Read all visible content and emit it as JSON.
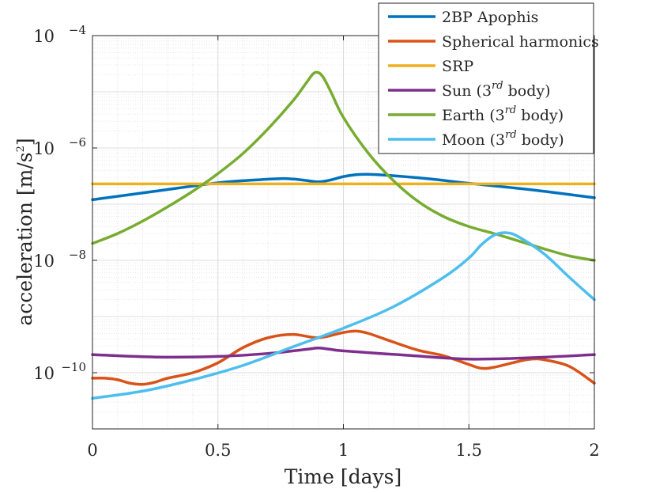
{
  "chart_data": {
    "type": "line",
    "xlabel": "Time [days]",
    "ylabel": "acceleration [m/s",
    "ylabel_sup": "2",
    "ylabel_tail": "]",
    "xlim": [
      0,
      2
    ],
    "ylim": [
      1e-11,
      0.0001
    ],
    "yscale": "log",
    "grid": true,
    "legend_position": "top-right",
    "x_ticks": [
      {
        "value": 0,
        "label": "0"
      },
      {
        "value": 0.5,
        "label": "0.5"
      },
      {
        "value": 1,
        "label": "1"
      },
      {
        "value": 1.5,
        "label": "1.5"
      },
      {
        "value": 2,
        "label": "2"
      }
    ],
    "y_ticks": [
      {
        "value": 1e-10,
        "base": "10",
        "exp": "−10"
      },
      {
        "value": 1e-08,
        "base": "10",
        "exp": "−8"
      },
      {
        "value": 1e-06,
        "base": "10",
        "exp": "−6"
      },
      {
        "value": 0.0001,
        "base": "10",
        "exp": "−4"
      }
    ],
    "series": [
      {
        "name": "2BP Apophis",
        "legend_main": "2BP Apophis",
        "legend_sup": "",
        "legend_tail": "",
        "color": "#0072BD",
        "x": [
          0,
          0.25,
          0.5,
          0.65,
          0.75,
          0.8,
          0.85,
          0.9,
          0.95,
          1.0,
          1.05,
          1.1,
          1.2,
          1.35,
          1.5,
          1.75,
          2.0
        ],
        "y": [
          1.2e-07,
          1.7e-07,
          2.4e-07,
          2.7e-07,
          2.85e-07,
          2.8e-07,
          2.65e-07,
          2.5e-07,
          2.7e-07,
          3.1e-07,
          3.35e-07,
          3.4e-07,
          3.2e-07,
          2.8e-07,
          2.35e-07,
          1.8e-07,
          1.3e-07
        ]
      },
      {
        "name": "Spherical harmonics",
        "legend_main": "Spherical harmonics",
        "legend_sup": "",
        "legend_tail": "",
        "color": "#D95319",
        "x": [
          0,
          0.05,
          0.1,
          0.15,
          0.2,
          0.25,
          0.3,
          0.4,
          0.5,
          0.6,
          0.7,
          0.8,
          0.9,
          1.0,
          1.05,
          1.1,
          1.2,
          1.3,
          1.4,
          1.5,
          1.55,
          1.6,
          1.7,
          1.75,
          1.8,
          1.9,
          2.0
        ],
        "y": [
          8e-11,
          8e-11,
          7.5e-11,
          6.5e-11,
          6.2e-11,
          6.8e-11,
          8e-11,
          1e-10,
          1.5e-10,
          2.8e-10,
          4.2e-10,
          4.8e-10,
          4.2e-10,
          5.2e-10,
          5.5e-10,
          5e-10,
          3.5e-10,
          2.5e-10,
          2e-10,
          1.4e-10,
          1.2e-10,
          1.25e-10,
          1.6e-10,
          1.75e-10,
          1.7e-10,
          1.3e-10,
          6.5e-11
        ]
      },
      {
        "name": "SRP",
        "legend_main": "SRP",
        "legend_sup": "",
        "legend_tail": "",
        "color": "#EDB120",
        "x": [
          0,
          2
        ],
        "y": [
          2.3e-07,
          2.3e-07
        ]
      },
      {
        "name": "Sun (3rd body)",
        "legend_main": "Sun (3",
        "legend_sup": "rd",
        "legend_tail": " body)",
        "color": "#7E2F8E",
        "x": [
          0,
          0.25,
          0.5,
          0.7,
          0.85,
          0.9,
          0.95,
          1.0,
          1.25,
          1.5,
          1.75,
          2.0
        ],
        "y": [
          2.1e-10,
          1.9e-10,
          1.95e-10,
          2.2e-10,
          2.6e-10,
          2.75e-10,
          2.6e-10,
          2.45e-10,
          2.05e-10,
          1.75e-10,
          1.85e-10,
          2.1e-10
        ]
      },
      {
        "name": "Earth (3rd body)",
        "legend_main": "Earth (3",
        "legend_sup": "rd",
        "legend_tail": " body)",
        "color": "#77AC30",
        "x": [
          0,
          0.1,
          0.2,
          0.3,
          0.4,
          0.5,
          0.6,
          0.7,
          0.8,
          0.85,
          0.88,
          0.9,
          0.92,
          0.95,
          1.0,
          1.1,
          1.2,
          1.3,
          1.4,
          1.5,
          1.6,
          1.7,
          1.8,
          1.9,
          2.0
        ],
        "y": [
          2e-08,
          3e-08,
          5e-08,
          9e-08,
          1.7e-07,
          3.5e-07,
          8e-07,
          2.2e-06,
          7e-06,
          1.4e-05,
          2.1e-05,
          2.2e-05,
          1.8e-05,
          1e-05,
          3.5e-06,
          8e-07,
          2.6e-07,
          1.1e-07,
          6e-08,
          4e-08,
          3e-08,
          2.2e-08,
          1.6e-08,
          1.2e-08,
          1e-08
        ]
      },
      {
        "name": "Moon (3rd body)",
        "legend_main": "Moon (3",
        "legend_sup": "rd",
        "legend_tail": " body)",
        "color": "#4DBEEE",
        "x": [
          0,
          0.2,
          0.4,
          0.6,
          0.8,
          1.0,
          1.2,
          1.4,
          1.5,
          1.55,
          1.6,
          1.65,
          1.7,
          1.8,
          1.9,
          2.0
        ],
        "y": [
          3.5e-11,
          4.7e-11,
          7.5e-11,
          1.35e-10,
          2.9e-10,
          6.2e-10,
          1.5e-09,
          5e-09,
          1.1e-08,
          1.9e-08,
          2.8e-08,
          3.1e-08,
          2.6e-08,
          1.3e-08,
          5e-09,
          2e-09
        ]
      }
    ]
  }
}
